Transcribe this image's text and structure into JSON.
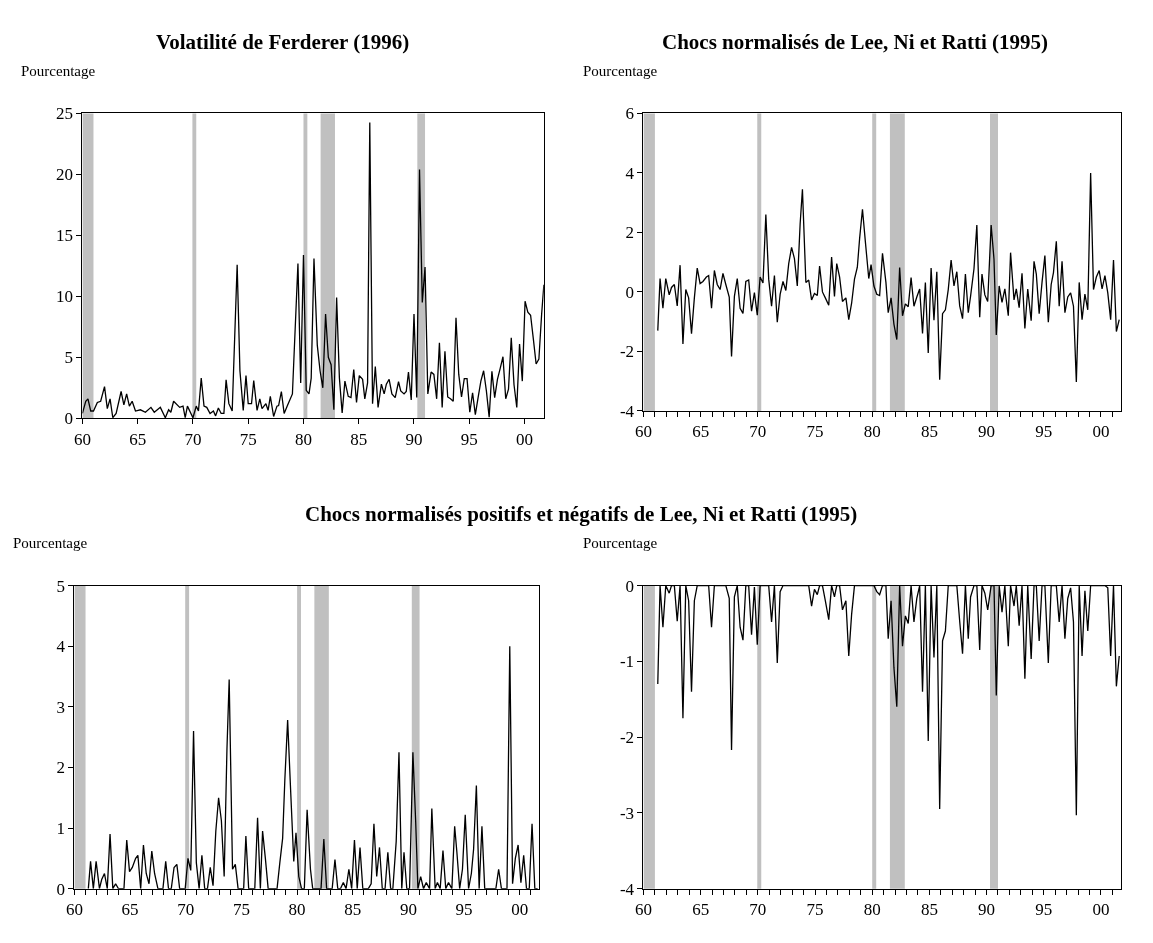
{
  "chart_data": [
    {
      "type": "line",
      "title": "Volatilité de Ferderer (1996)",
      "ylabel": "Pourcentage",
      "color": "#000000",
      "grid": false,
      "legend": false,
      "x": [
        1960,
        1960.3,
        1960.5,
        1960.75,
        1961,
        1961.35,
        1961.65,
        1962,
        1962.25,
        1962.5,
        1962.75,
        1963.05,
        1963.5,
        1963.75,
        1964,
        1964.25,
        1964.5,
        1964.8,
        1965.25,
        1965.7,
        1966.2,
        1966.5,
        1967.05,
        1967.5,
        1967.8,
        1968,
        1968.25,
        1968.8,
        1969.1,
        1969.3,
        1969.5,
        1970,
        1970.3,
        1970.5,
        1970.75,
        1971,
        1971.25,
        1971.55,
        1971.85,
        1972.05,
        1972.3,
        1972.55,
        1972.8,
        1973,
        1973.25,
        1973.55,
        1974,
        1974.25,
        1974.55,
        1974.8,
        1975,
        1975.3,
        1975.5,
        1975.8,
        1976.05,
        1976.25,
        1976.6,
        1976.8,
        1977,
        1977.3,
        1977.6,
        1977.75,
        1978,
        1978.25,
        1978.55,
        1979,
        1979.5,
        1979.75,
        1980,
        1980.25,
        1980.5,
        1980.7,
        1980.95,
        1981.25,
        1981.5,
        1981.75,
        1982,
        1982.25,
        1982.5,
        1982.75,
        1983,
        1983.25,
        1983.5,
        1983.75,
        1984.05,
        1984.3,
        1984.55,
        1984.8,
        1985.05,
        1985.35,
        1985.55,
        1985.8,
        1986,
        1986.25,
        1986.5,
        1986.75,
        1987.05,
        1987.3,
        1987.5,
        1987.75,
        1988,
        1988.3,
        1988.6,
        1988.8,
        1989.1,
        1989.3,
        1989.5,
        1989.75,
        1990,
        1990.25,
        1990.5,
        1990.75,
        1991,
        1991.25,
        1991.55,
        1991.8,
        1992.05,
        1992.3,
        1992.55,
        1992.8,
        1993.05,
        1993.3,
        1993.55,
        1993.8,
        1994.05,
        1994.3,
        1994.55,
        1994.8,
        1995.05,
        1995.3,
        1995.55,
        1995.8,
        1996.05,
        1996.3,
        1996.55,
        1996.8,
        1997.05,
        1997.3,
        1997.55,
        1997.8,
        1998.05,
        1998.3,
        1998.55,
        1998.8,
        1999.05,
        1999.3,
        1999.55,
        1999.8,
        2000.05,
        2000.3,
        2000.55,
        2000.8,
        2001.05,
        2001.3,
        2001.55,
        2001.75
      ],
      "values": [
        0.4,
        1.4,
        1.6,
        0.6,
        0.6,
        1.3,
        1.4,
        2.6,
        0.8,
        1.6,
        0.05,
        0.4,
        2.2,
        1.1,
        2.0,
        1.0,
        1.4,
        0.6,
        0.7,
        0.5,
        0.9,
        0.5,
        0.9,
        0.05,
        0.7,
        0.5,
        1.4,
        0.9,
        1.0,
        0.05,
        1.0,
        0.05,
        1.0,
        0.6,
        3.3,
        1.0,
        0.9,
        0.4,
        0.6,
        0.2,
        0.85,
        0.4,
        0.4,
        3.15,
        1.2,
        0.6,
        12.6,
        3.9,
        0.65,
        3.5,
        1.2,
        1.2,
        3.1,
        0.65,
        1.6,
        0.8,
        1.2,
        0.65,
        1.8,
        0.15,
        1.0,
        1.05,
        2.2,
        0.4,
        1.05,
        2.0,
        12.7,
        2.9,
        13.4,
        2.3,
        2.0,
        3.3,
        13.1,
        6.0,
        3.9,
        2.5,
        8.55,
        5.0,
        4.4,
        0.7,
        9.9,
        3.3,
        0.45,
        3.05,
        1.8,
        1.7,
        4.0,
        1.3,
        3.5,
        3.2,
        1.6,
        2.9,
        24.25,
        1.2,
        4.25,
        0.9,
        2.8,
        2.0,
        2.8,
        3.2,
        2.0,
        1.7,
        3.0,
        2.25,
        2.0,
        2.2,
        3.8,
        1.5,
        8.55,
        1.7,
        20.4,
        9.5,
        12.4,
        2.0,
        3.8,
        3.6,
        1.6,
        6.2,
        0.9,
        5.5,
        1.75,
        1.6,
        1.4,
        8.25,
        3.6,
        1.75,
        3.25,
        3.25,
        0.5,
        2.1,
        0.3,
        1.7,
        3.05,
        3.9,
        2.25,
        0.1,
        3.85,
        1.7,
        3.2,
        4.1,
        5.05,
        1.6,
        2.4,
        6.6,
        2.75,
        0.9,
        6.1,
        3.05,
        9.6,
        8.7,
        8.45,
        6.5,
        4.45,
        4.85,
        8.55,
        10.95
      ],
      "xlim": [
        1960,
        2001.75
      ],
      "xticks": [
        {
          "value": 1960,
          "label": "60"
        },
        {
          "value": 1965,
          "label": "65"
        },
        {
          "value": 1970,
          "label": "70"
        },
        {
          "value": 1975,
          "label": "75"
        },
        {
          "value": 1980,
          "label": "80"
        },
        {
          "value": 1985,
          "label": "85"
        },
        {
          "value": 1990,
          "label": "90"
        },
        {
          "value": 1995,
          "label": "95"
        },
        {
          "value": 2000,
          "label": "00"
        }
      ],
      "ylim": [
        0,
        25
      ],
      "yticks": [
        0,
        5,
        10,
        15,
        20,
        25
      ],
      "bands": [
        {
          "axis": "x",
          "from": 1960,
          "to": 1961,
          "color": "#c0c0c0"
        },
        {
          "axis": "x",
          "from": 1969.95,
          "to": 1970.3,
          "color": "#c0c0c0"
        },
        {
          "axis": "x",
          "from": 1980,
          "to": 1980.35,
          "color": "#c0c0c0"
        },
        {
          "axis": "x",
          "from": 1981.55,
          "to": 1982.85,
          "color": "#c0c0c0"
        },
        {
          "axis": "x",
          "from": 1990.3,
          "to": 1991,
          "color": "#c0c0c0"
        }
      ]
    },
    {
      "type": "line",
      "title": "Chocs normalisés de Lee, Ni et Ratti (1995)",
      "ylabel": "Pourcentage",
      "color": "#000000",
      "grid": false,
      "legend": false,
      "x": [
        1961.25,
        1961.45,
        1961.7,
        1961.95,
        1962.25,
        1962.45,
        1962.7,
        1962.95,
        1963.2,
        1963.45,
        1963.7,
        1963.95,
        1964.2,
        1964.45,
        1964.7,
        1964.95,
        1965.2,
        1965.5,
        1965.7,
        1965.95,
        1966.2,
        1966.45,
        1966.7,
        1966.95,
        1967.2,
        1967.5,
        1967.7,
        1967.95,
        1968.2,
        1968.45,
        1968.7,
        1968.95,
        1969.2,
        1969.45,
        1969.7,
        1969.95,
        1970.2,
        1970.45,
        1970.7,
        1970.95,
        1971.2,
        1971.45,
        1971.7,
        1971.95,
        1972.2,
        1972.45,
        1972.7,
        1972.95,
        1973.2,
        1973.45,
        1973.7,
        1973.9,
        1974.2,
        1974.45,
        1974.7,
        1974.95,
        1975.2,
        1975.4,
        1975.65,
        1975.9,
        1976.2,
        1976.45,
        1976.7,
        1976.9,
        1977.15,
        1977.4,
        1977.7,
        1977.95,
        1978.2,
        1978.45,
        1978.7,
        1978.9,
        1979.15,
        1979.4,
        1979.7,
        1979.9,
        1980.15,
        1980.4,
        1980.65,
        1980.9,
        1981.2,
        1981.4,
        1981.65,
        1981.9,
        1982.15,
        1982.4,
        1982.65,
        1982.9,
        1983.15,
        1983.4,
        1983.65,
        1983.9,
        1984.15,
        1984.4,
        1984.65,
        1984.9,
        1985.15,
        1985.4,
        1985.65,
        1985.9,
        1986.15,
        1986.4,
        1986.65,
        1986.9,
        1987.15,
        1987.4,
        1987.65,
        1987.9,
        1988.15,
        1988.4,
        1988.6,
        1988.9,
        1989.15,
        1989.4,
        1989.6,
        1989.85,
        1990.1,
        1990.4,
        1990.65,
        1990.85,
        1991.1,
        1991.35,
        1991.6,
        1991.9,
        1992.1,
        1992.4,
        1992.6,
        1992.85,
        1993.1,
        1993.35,
        1993.6,
        1993.9,
        1994.15,
        1994.35,
        1994.6,
        1994.85,
        1995.1,
        1995.4,
        1995.65,
        1995.85,
        1996.1,
        1996.35,
        1996.6,
        1996.85,
        1997.1,
        1997.35,
        1997.6,
        1997.85,
        1998.1,
        1998.35,
        1998.6,
        1998.85,
        1999.1,
        1999.35,
        1999.6,
        1999.85,
        2000.1,
        2000.35,
        2000.6,
        2000.85,
        2001.1,
        2001.35,
        2001.6
      ],
      "values": [
        -1.3,
        0.45,
        -0.55,
        0.45,
        -0.1,
        0.15,
        0.25,
        -0.47,
        0.9,
        -1.75,
        0.08,
        -0.2,
        -1.4,
        -0.2,
        0.8,
        0.28,
        0.35,
        0.5,
        0.55,
        -0.55,
        0.72,
        0.25,
        0.08,
        0.62,
        0.25,
        -0.17,
        -2.17,
        -0.15,
        0.45,
        -0.55,
        -0.72,
        0.35,
        0.4,
        -0.65,
        -0.02,
        -0.78,
        0.5,
        0.3,
        2.6,
        0.43,
        -0.48,
        0.55,
        -1.02,
        -0.08,
        0.35,
        0.05,
        0.95,
        1.5,
        1.12,
        0.2,
        2.3,
        3.45,
        0.32,
        0.4,
        -0.27,
        -0.05,
        -0.12,
        0.87,
        0.0,
        -0.2,
        -0.45,
        1.17,
        -0.15,
        0.95,
        0.5,
        -0.32,
        -0.2,
        -0.93,
        -0.38,
        0.43,
        0.83,
        1.8,
        2.78,
        1.7,
        0.45,
        0.92,
        0.2,
        -0.08,
        -0.12,
        1.3,
        0.32,
        -0.7,
        -0.2,
        -1.08,
        -1.6,
        0.82,
        -0.8,
        -0.4,
        -0.5,
        0.48,
        -0.48,
        -0.17,
        0.1,
        -1.4,
        0.32,
        -2.05,
        0.8,
        -0.95,
        0.68,
        -2.95,
        -0.73,
        -0.6,
        0.08,
        1.07,
        0.2,
        0.68,
        -0.47,
        -0.9,
        0.6,
        -0.7,
        -0.15,
        0.78,
        2.25,
        -0.85,
        0.6,
        -0.1,
        -0.32,
        2.25,
        1.1,
        -1.45,
        0.2,
        -0.35,
        0.1,
        -0.8,
        1.32,
        -0.27,
        0.1,
        -0.53,
        0.63,
        -1.23,
        0.1,
        -0.97,
        1.03,
        0.6,
        -0.73,
        0.32,
        1.22,
        -1.02,
        0.25,
        0.65,
        1.7,
        -0.48,
        1.03,
        -0.7,
        -0.17,
        -0.03,
        -0.48,
        -3.03,
        0.32,
        -0.93,
        -0.07,
        -0.6,
        4.0,
        0.08,
        0.5,
        0.72,
        0.1,
        0.55,
        -0.03,
        -0.93,
        1.07,
        -1.33,
        -0.93
      ],
      "xlim": [
        1960,
        2001.75
      ],
      "xticks": [
        {
          "value": 1960,
          "label": "60"
        },
        {
          "value": 1961,
          "label": null
        },
        {
          "value": 1962,
          "label": null
        },
        {
          "value": 1963,
          "label": null
        },
        {
          "value": 1964,
          "label": null
        },
        {
          "value": 1965,
          "label": "65"
        },
        {
          "value": 1966,
          "label": null
        },
        {
          "value": 1967,
          "label": null
        },
        {
          "value": 1968,
          "label": null
        },
        {
          "value": 1969,
          "label": null
        },
        {
          "value": 1970,
          "label": "70"
        },
        {
          "value": 1971,
          "label": null
        },
        {
          "value": 1972,
          "label": null
        },
        {
          "value": 1973,
          "label": null
        },
        {
          "value": 1974,
          "label": null
        },
        {
          "value": 1975,
          "label": "75"
        },
        {
          "value": 1976,
          "label": null
        },
        {
          "value": 1977,
          "label": null
        },
        {
          "value": 1978,
          "label": null
        },
        {
          "value": 1979,
          "label": null
        },
        {
          "value": 1980,
          "label": "80"
        },
        {
          "value": 1981,
          "label": null
        },
        {
          "value": 1982,
          "label": null
        },
        {
          "value": 1983,
          "label": null
        },
        {
          "value": 1984,
          "label": null
        },
        {
          "value": 1985,
          "label": "85"
        },
        {
          "value": 1986,
          "label": null
        },
        {
          "value": 1987,
          "label": null
        },
        {
          "value": 1988,
          "label": null
        },
        {
          "value": 1989,
          "label": null
        },
        {
          "value": 1990,
          "label": "90"
        },
        {
          "value": 1991,
          "label": null
        },
        {
          "value": 1992,
          "label": null
        },
        {
          "value": 1993,
          "label": null
        },
        {
          "value": 1994,
          "label": null
        },
        {
          "value": 1995,
          "label": "95"
        },
        {
          "value": 1996,
          "label": null
        },
        {
          "value": 1997,
          "label": null
        },
        {
          "value": 1998,
          "label": null
        },
        {
          "value": 1999,
          "label": null
        },
        {
          "value": 2000,
          "label": "00"
        },
        {
          "value": 2001,
          "label": null
        }
      ],
      "ylim": [
        -4,
        6
      ],
      "yticks": [
        -4,
        -2,
        0,
        2,
        4,
        6
      ],
      "bands": [
        {
          "axis": "x",
          "from": 1960,
          "to": 1961,
          "color": "#c0c0c0"
        },
        {
          "axis": "x",
          "from": 1969.95,
          "to": 1970.3,
          "color": "#c0c0c0"
        },
        {
          "axis": "x",
          "from": 1980,
          "to": 1980.35,
          "color": "#c0c0c0"
        },
        {
          "axis": "x",
          "from": 1981.55,
          "to": 1982.85,
          "color": "#c0c0c0"
        },
        {
          "axis": "x",
          "from": 1990.3,
          "to": 1991,
          "color": "#c0c0c0"
        }
      ]
    },
    {
      "type": "line",
      "title": "Chocs normalisés positifs et négatifs de Lee, Ni et Ratti (1995)",
      "ylabel": "Pourcentage",
      "color": "#000000",
      "grid": false,
      "legend": false,
      "x": [
        1961.25,
        1961.45,
        1961.7,
        1961.95,
        1962.25,
        1962.45,
        1962.7,
        1962.95,
        1963.2,
        1963.45,
        1963.7,
        1963.95,
        1964.2,
        1964.45,
        1964.7,
        1964.95,
        1965.2,
        1965.5,
        1965.7,
        1965.95,
        1966.2,
        1966.45,
        1966.7,
        1966.95,
        1967.2,
        1967.5,
        1967.7,
        1967.95,
        1968.2,
        1968.45,
        1968.7,
        1968.95,
        1969.2,
        1969.45,
        1969.7,
        1969.95,
        1970.2,
        1970.45,
        1970.7,
        1970.95,
        1971.2,
        1971.45,
        1971.7,
        1971.95,
        1972.2,
        1972.45,
        1972.7,
        1972.95,
        1973.2,
        1973.45,
        1973.7,
        1973.9,
        1974.2,
        1974.45,
        1974.7,
        1974.95,
        1975.2,
        1975.4,
        1975.65,
        1975.9,
        1976.2,
        1976.45,
        1976.7,
        1976.9,
        1977.15,
        1977.4,
        1977.7,
        1977.95,
        1978.2,
        1978.45,
        1978.7,
        1978.9,
        1979.15,
        1979.4,
        1979.7,
        1979.9,
        1980.15,
        1980.4,
        1980.65,
        1980.9,
        1981.2,
        1981.4,
        1981.65,
        1981.9,
        1982.15,
        1982.4,
        1982.65,
        1982.9,
        1983.15,
        1983.4,
        1983.65,
        1983.9,
        1984.15,
        1984.4,
        1984.65,
        1984.9,
        1985.15,
        1985.4,
        1985.65,
        1985.9,
        1986.15,
        1986.4,
        1986.65,
        1986.9,
        1987.15,
        1987.4,
        1987.65,
        1987.9,
        1988.15,
        1988.4,
        1988.6,
        1988.9,
        1989.15,
        1989.4,
        1989.6,
        1989.85,
        1990.1,
        1990.4,
        1990.65,
        1990.85,
        1991.1,
        1991.35,
        1991.6,
        1991.9,
        1992.1,
        1992.4,
        1992.6,
        1992.85,
        1993.1,
        1993.35,
        1993.6,
        1993.9,
        1994.15,
        1994.35,
        1994.6,
        1994.85,
        1995.1,
        1995.4,
        1995.65,
        1995.85,
        1996.1,
        1996.35,
        1996.6,
        1996.85,
        1997.1,
        1997.35,
        1997.6,
        1997.85,
        1998.1,
        1998.35,
        1998.6,
        1998.85,
        1999.1,
        1999.35,
        1999.6,
        1999.85,
        2000.1,
        2000.35,
        2000.6,
        2000.85,
        2001.1,
        2001.35,
        2001.6
      ],
      "values": [
        0,
        0.45,
        0,
        0.45,
        0,
        0.15,
        0.25,
        0,
        0.9,
        0,
        0.08,
        0,
        0,
        0,
        0.8,
        0.28,
        0.35,
        0.5,
        0.55,
        0,
        0.72,
        0.25,
        0.08,
        0.62,
        0.25,
        0,
        0,
        0,
        0.45,
        0,
        0,
        0.35,
        0.4,
        0,
        0,
        0,
        0.5,
        0.3,
        2.6,
        0.43,
        0,
        0.55,
        0,
        0,
        0.35,
        0.05,
        0.95,
        1.5,
        1.12,
        0.2,
        2.3,
        3.45,
        0.32,
        0.4,
        0,
        0,
        0,
        0.87,
        0,
        0,
        0,
        1.17,
        0,
        0.95,
        0.5,
        0,
        0,
        0,
        0,
        0.43,
        0.83,
        1.8,
        2.78,
        1.7,
        0.45,
        0.92,
        0.2,
        0,
        0,
        1.3,
        0.32,
        0,
        0,
        0,
        0,
        0.82,
        0,
        0,
        0,
        0.48,
        0,
        0,
        0.1,
        0,
        0.32,
        0,
        0.8,
        0,
        0.68,
        0,
        0,
        0,
        0.08,
        1.07,
        0.2,
        0.68,
        0,
        0,
        0.6,
        0,
        0,
        0.78,
        2.25,
        0,
        0.6,
        0,
        0,
        2.25,
        1.1,
        0,
        0.2,
        0,
        0.1,
        0,
        1.32,
        0,
        0.1,
        0,
        0.63,
        0,
        0.1,
        0,
        1.03,
        0.6,
        0,
        0.32,
        1.22,
        0,
        0.25,
        0.65,
        1.7,
        0,
        1.03,
        0,
        0,
        0,
        0,
        0,
        0.32,
        0,
        0,
        0,
        4.0,
        0.08,
        0.5,
        0.72,
        0.1,
        0.55,
        0,
        0,
        1.07,
        0,
        0
      ],
      "xlim": [
        1960,
        2001.75
      ],
      "xticks": [
        {
          "value": 1960,
          "label": "60"
        },
        {
          "value": 1961,
          "label": null
        },
        {
          "value": 1962,
          "label": null
        },
        {
          "value": 1963,
          "label": null
        },
        {
          "value": 1964,
          "label": null
        },
        {
          "value": 1965,
          "label": "65"
        },
        {
          "value": 1966,
          "label": null
        },
        {
          "value": 1967,
          "label": null
        },
        {
          "value": 1968,
          "label": null
        },
        {
          "value": 1969,
          "label": null
        },
        {
          "value": 1970,
          "label": "70"
        },
        {
          "value": 1971,
          "label": null
        },
        {
          "value": 1972,
          "label": null
        },
        {
          "value": 1973,
          "label": null
        },
        {
          "value": 1974,
          "label": null
        },
        {
          "value": 1975,
          "label": "75"
        },
        {
          "value": 1976,
          "label": null
        },
        {
          "value": 1977,
          "label": null
        },
        {
          "value": 1978,
          "label": null
        },
        {
          "value": 1979,
          "label": null
        },
        {
          "value": 1980,
          "label": "80"
        },
        {
          "value": 1981,
          "label": null
        },
        {
          "value": 1982,
          "label": null
        },
        {
          "value": 1983,
          "label": null
        },
        {
          "value": 1984,
          "label": null
        },
        {
          "value": 1985,
          "label": "85"
        },
        {
          "value": 1986,
          "label": null
        },
        {
          "value": 1987,
          "label": null
        },
        {
          "value": 1988,
          "label": null
        },
        {
          "value": 1989,
          "label": null
        },
        {
          "value": 1990,
          "label": "90"
        },
        {
          "value": 1991,
          "label": null
        },
        {
          "value": 1992,
          "label": null
        },
        {
          "value": 1993,
          "label": null
        },
        {
          "value": 1994,
          "label": null
        },
        {
          "value": 1995,
          "label": "95"
        },
        {
          "value": 1996,
          "label": null
        },
        {
          "value": 1997,
          "label": null
        },
        {
          "value": 1998,
          "label": null
        },
        {
          "value": 1999,
          "label": null
        },
        {
          "value": 2000,
          "label": "00"
        },
        {
          "value": 2001,
          "label": null
        }
      ],
      "ylim": [
        0,
        5
      ],
      "yticks": [
        0,
        1,
        2,
        3,
        4,
        5
      ],
      "bands": [
        {
          "axis": "x",
          "from": 1960,
          "to": 1961,
          "color": "#c0c0c0"
        },
        {
          "axis": "x",
          "from": 1969.95,
          "to": 1970.3,
          "color": "#c0c0c0"
        },
        {
          "axis": "x",
          "from": 1980,
          "to": 1980.35,
          "color": "#c0c0c0"
        },
        {
          "axis": "x",
          "from": 1981.55,
          "to": 1982.85,
          "color": "#c0c0c0"
        },
        {
          "axis": "x",
          "from": 1990.3,
          "to": 1991,
          "color": "#c0c0c0"
        }
      ]
    },
    {
      "type": "line",
      "ylabel": "Pourcentage",
      "color": "#000000",
      "grid": false,
      "legend": false,
      "x": [
        1961.25,
        1961.45,
        1961.7,
        1961.95,
        1962.25,
        1962.45,
        1962.7,
        1962.95,
        1963.2,
        1963.45,
        1963.7,
        1963.95,
        1964.2,
        1964.45,
        1964.7,
        1964.95,
        1965.2,
        1965.5,
        1965.7,
        1965.95,
        1966.2,
        1966.45,
        1966.7,
        1966.95,
        1967.2,
        1967.5,
        1967.7,
        1967.95,
        1968.2,
        1968.45,
        1968.7,
        1968.95,
        1969.2,
        1969.45,
        1969.7,
        1969.95,
        1970.2,
        1970.45,
        1970.7,
        1970.95,
        1971.2,
        1971.45,
        1971.7,
        1971.95,
        1972.2,
        1972.45,
        1972.7,
        1972.95,
        1973.2,
        1973.45,
        1973.7,
        1973.9,
        1974.2,
        1974.45,
        1974.7,
        1974.95,
        1975.2,
        1975.4,
        1975.65,
        1975.9,
        1976.2,
        1976.45,
        1976.7,
        1976.9,
        1977.15,
        1977.4,
        1977.7,
        1977.95,
        1978.2,
        1978.45,
        1978.7,
        1978.9,
        1979.15,
        1979.4,
        1979.7,
        1979.9,
        1980.15,
        1980.4,
        1980.65,
        1980.9,
        1981.2,
        1981.4,
        1981.65,
        1981.9,
        1982.15,
        1982.4,
        1982.65,
        1982.9,
        1983.15,
        1983.4,
        1983.65,
        1983.9,
        1984.15,
        1984.4,
        1984.65,
        1984.9,
        1985.15,
        1985.4,
        1985.65,
        1985.9,
        1986.15,
        1986.4,
        1986.65,
        1986.9,
        1987.15,
        1987.4,
        1987.65,
        1987.9,
        1988.15,
        1988.4,
        1988.6,
        1988.9,
        1989.15,
        1989.4,
        1989.6,
        1989.85,
        1990.1,
        1990.4,
        1990.65,
        1990.85,
        1991.1,
        1991.35,
        1991.6,
        1991.9,
        1992.1,
        1992.4,
        1992.6,
        1992.85,
        1993.1,
        1993.35,
        1993.6,
        1993.9,
        1994.15,
        1994.35,
        1994.6,
        1994.85,
        1995.1,
        1995.4,
        1995.65,
        1995.85,
        1996.1,
        1996.35,
        1996.6,
        1996.85,
        1997.1,
        1997.35,
        1997.6,
        1997.85,
        1998.1,
        1998.35,
        1998.6,
        1998.85,
        1999.1,
        1999.35,
        1999.6,
        1999.85,
        2000.1,
        2000.35,
        2000.6,
        2000.85,
        2001.1,
        2001.35,
        2001.6
      ],
      "values": [
        -1.3,
        0,
        -0.55,
        0,
        -0.1,
        0,
        0,
        -0.47,
        0,
        -1.75,
        0,
        -0.2,
        -1.4,
        -0.2,
        0,
        0,
        0,
        0,
        0,
        -0.55,
        0,
        0,
        0,
        0,
        0,
        -0.17,
        -2.17,
        -0.15,
        0,
        -0.55,
        -0.72,
        0,
        0,
        -0.65,
        -0.02,
        -0.78,
        0,
        0,
        0,
        0,
        -0.48,
        0,
        -1.02,
        -0.08,
        0,
        0,
        0,
        0,
        0,
        0,
        0,
        0,
        0,
        0,
        -0.27,
        -0.05,
        -0.12,
        0,
        0,
        -0.2,
        -0.45,
        0,
        -0.15,
        0,
        0,
        -0.32,
        -0.2,
        -0.93,
        -0.38,
        0,
        0,
        0,
        0,
        0,
        0,
        0,
        0,
        -0.08,
        -0.12,
        0,
        0,
        -0.7,
        -0.2,
        -1.08,
        -1.6,
        0,
        -0.8,
        -0.4,
        -0.5,
        0,
        -0.48,
        -0.17,
        0,
        -1.4,
        0,
        -2.05,
        0,
        -0.95,
        0,
        -2.95,
        -0.73,
        -0.6,
        0,
        0,
        0,
        0,
        -0.47,
        -0.9,
        0,
        -0.7,
        -0.15,
        0,
        0,
        -0.85,
        0,
        -0.1,
        -0.32,
        0,
        0,
        -1.45,
        0,
        -0.35,
        0,
        -0.8,
        0,
        -0.27,
        0,
        -0.53,
        0,
        -1.23,
        0,
        -0.97,
        0,
        0,
        -0.73,
        0,
        0,
        -1.02,
        0,
        0,
        0,
        -0.48,
        0,
        -0.7,
        -0.17,
        -0.03,
        -0.48,
        -3.03,
        0,
        -0.93,
        -0.07,
        -0.6,
        0,
        0,
        0,
        0,
        0,
        0,
        -0.03,
        -0.93,
        0,
        -1.33,
        -0.93
      ],
      "xlim": [
        1960,
        2001.75
      ],
      "xticks": [
        {
          "value": 1960,
          "label": "60"
        },
        {
          "value": 1961,
          "label": null
        },
        {
          "value": 1962,
          "label": null
        },
        {
          "value": 1963,
          "label": null
        },
        {
          "value": 1964,
          "label": null
        },
        {
          "value": 1965,
          "label": "65"
        },
        {
          "value": 1966,
          "label": null
        },
        {
          "value": 1967,
          "label": null
        },
        {
          "value": 1968,
          "label": null
        },
        {
          "value": 1969,
          "label": null
        },
        {
          "value": 1970,
          "label": "70"
        },
        {
          "value": 1971,
          "label": null
        },
        {
          "value": 1972,
          "label": null
        },
        {
          "value": 1973,
          "label": null
        },
        {
          "value": 1974,
          "label": null
        },
        {
          "value": 1975,
          "label": "75"
        },
        {
          "value": 1976,
          "label": null
        },
        {
          "value": 1977,
          "label": null
        },
        {
          "value": 1978,
          "label": null
        },
        {
          "value": 1979,
          "label": null
        },
        {
          "value": 1980,
          "label": "80"
        },
        {
          "value": 1981,
          "label": null
        },
        {
          "value": 1982,
          "label": null
        },
        {
          "value": 1983,
          "label": null
        },
        {
          "value": 1984,
          "label": null
        },
        {
          "value": 1985,
          "label": "85"
        },
        {
          "value": 1986,
          "label": null
        },
        {
          "value": 1987,
          "label": null
        },
        {
          "value": 1988,
          "label": null
        },
        {
          "value": 1989,
          "label": null
        },
        {
          "value": 1990,
          "label": "90"
        },
        {
          "value": 1991,
          "label": null
        },
        {
          "value": 1992,
          "label": null
        },
        {
          "value": 1993,
          "label": null
        },
        {
          "value": 1994,
          "label": null
        },
        {
          "value": 1995,
          "label": "95"
        },
        {
          "value": 1996,
          "label": null
        },
        {
          "value": 1997,
          "label": null
        },
        {
          "value": 1998,
          "label": null
        },
        {
          "value": 1999,
          "label": null
        },
        {
          "value": 2000,
          "label": "00"
        },
        {
          "value": 2001,
          "label": null
        }
      ],
      "ylim": [
        -4,
        0
      ],
      "yticks": [
        -4,
        -3,
        -2,
        -1,
        0
      ],
      "bands": [
        {
          "axis": "x",
          "from": 1960,
          "to": 1961,
          "color": "#c0c0c0"
        },
        {
          "axis": "x",
          "from": 1969.95,
          "to": 1970.3,
          "color": "#c0c0c0"
        },
        {
          "axis": "x",
          "from": 1980,
          "to": 1980.35,
          "color": "#c0c0c0"
        },
        {
          "axis": "x",
          "from": 1981.55,
          "to": 1982.85,
          "color": "#c0c0c0"
        },
        {
          "axis": "x",
          "from": 1990.3,
          "to": 1991,
          "color": "#c0c0c0"
        }
      ]
    }
  ]
}
